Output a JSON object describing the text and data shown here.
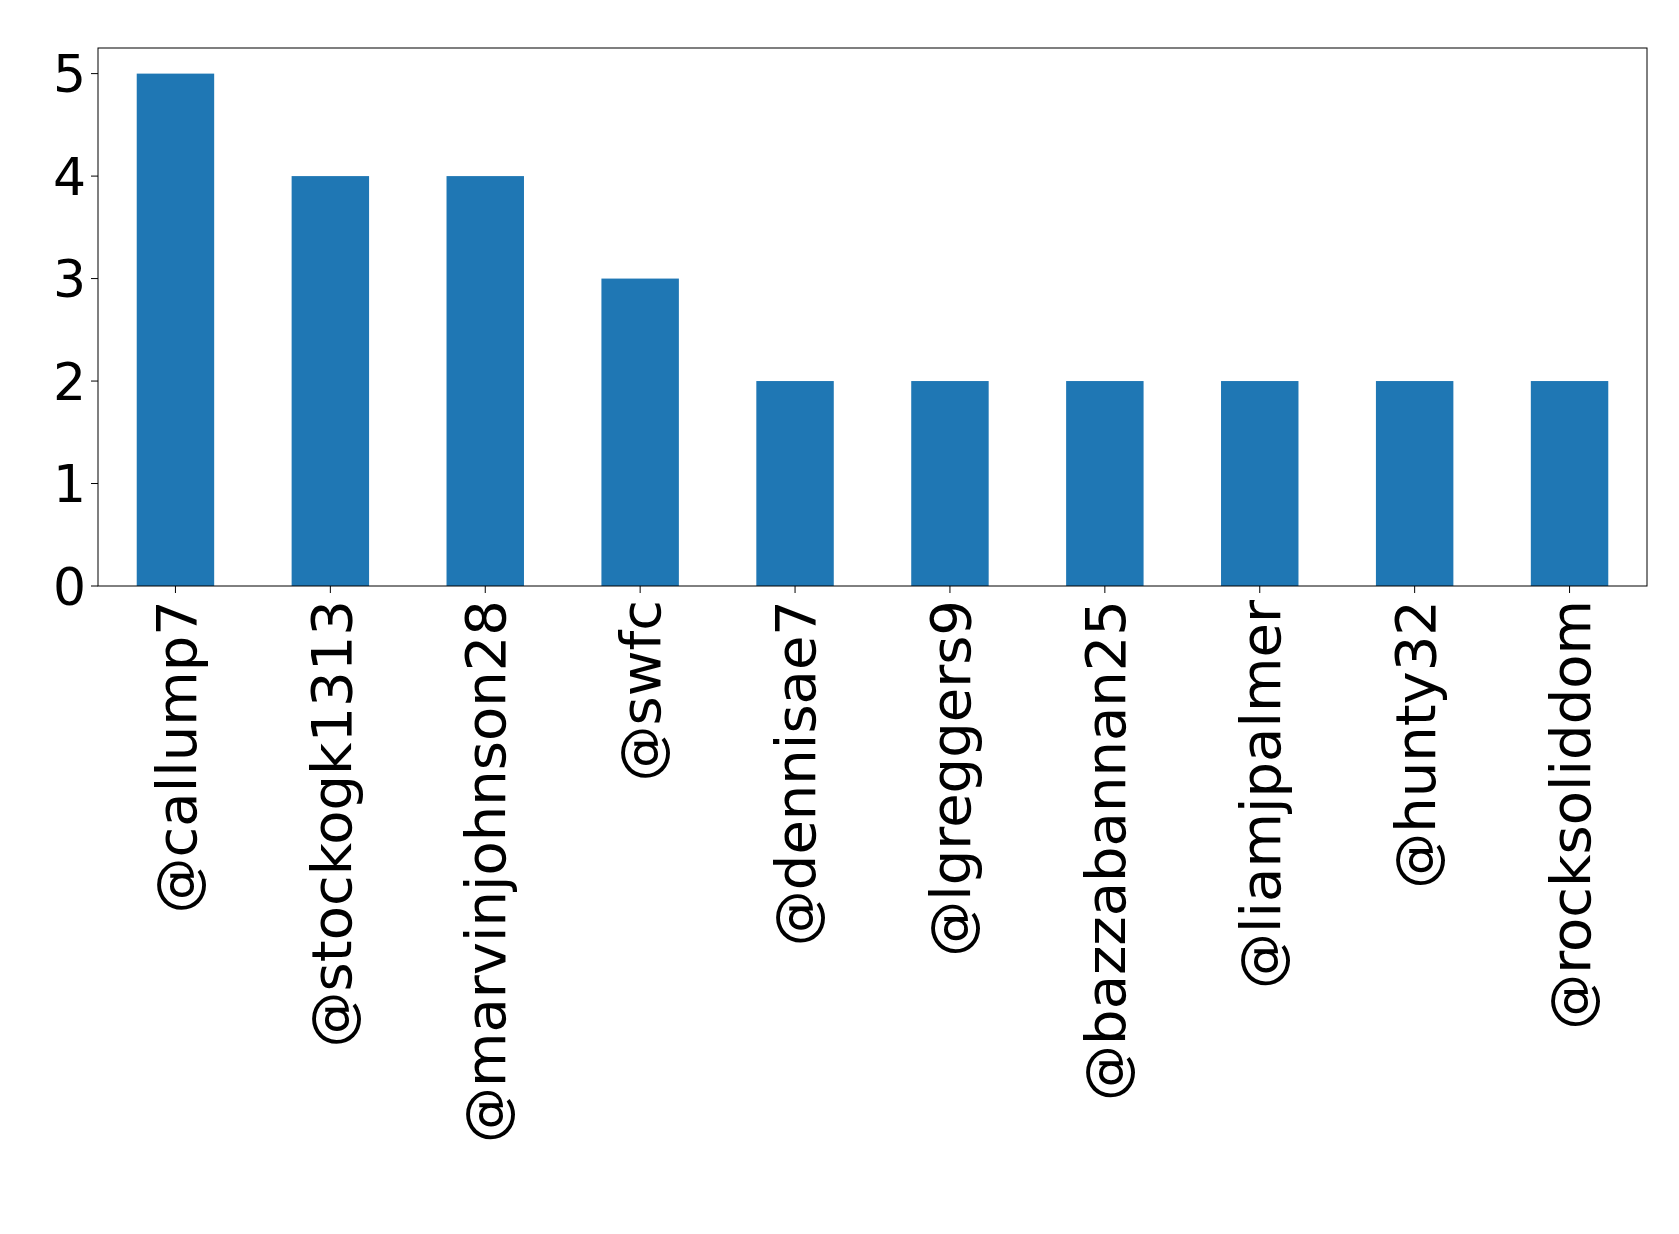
{
  "chart_data": {
    "type": "bar",
    "categories": [
      "@callump7",
      "@stockogk1313",
      "@marvinjohnson28",
      "@swfc",
      "@dennisae7",
      "@lgreggers9",
      "@bazzabannan25",
      "@liamjpalmer",
      "@hunty32",
      "@rocksoliddom"
    ],
    "values": [
      5,
      4,
      4,
      3,
      2,
      2,
      2,
      2,
      2,
      2
    ],
    "color": "#1f77b4",
    "ylim": [
      0,
      5.25
    ],
    "yticks": [
      0,
      1,
      2,
      3,
      4,
      5
    ],
    "grid": false
  }
}
